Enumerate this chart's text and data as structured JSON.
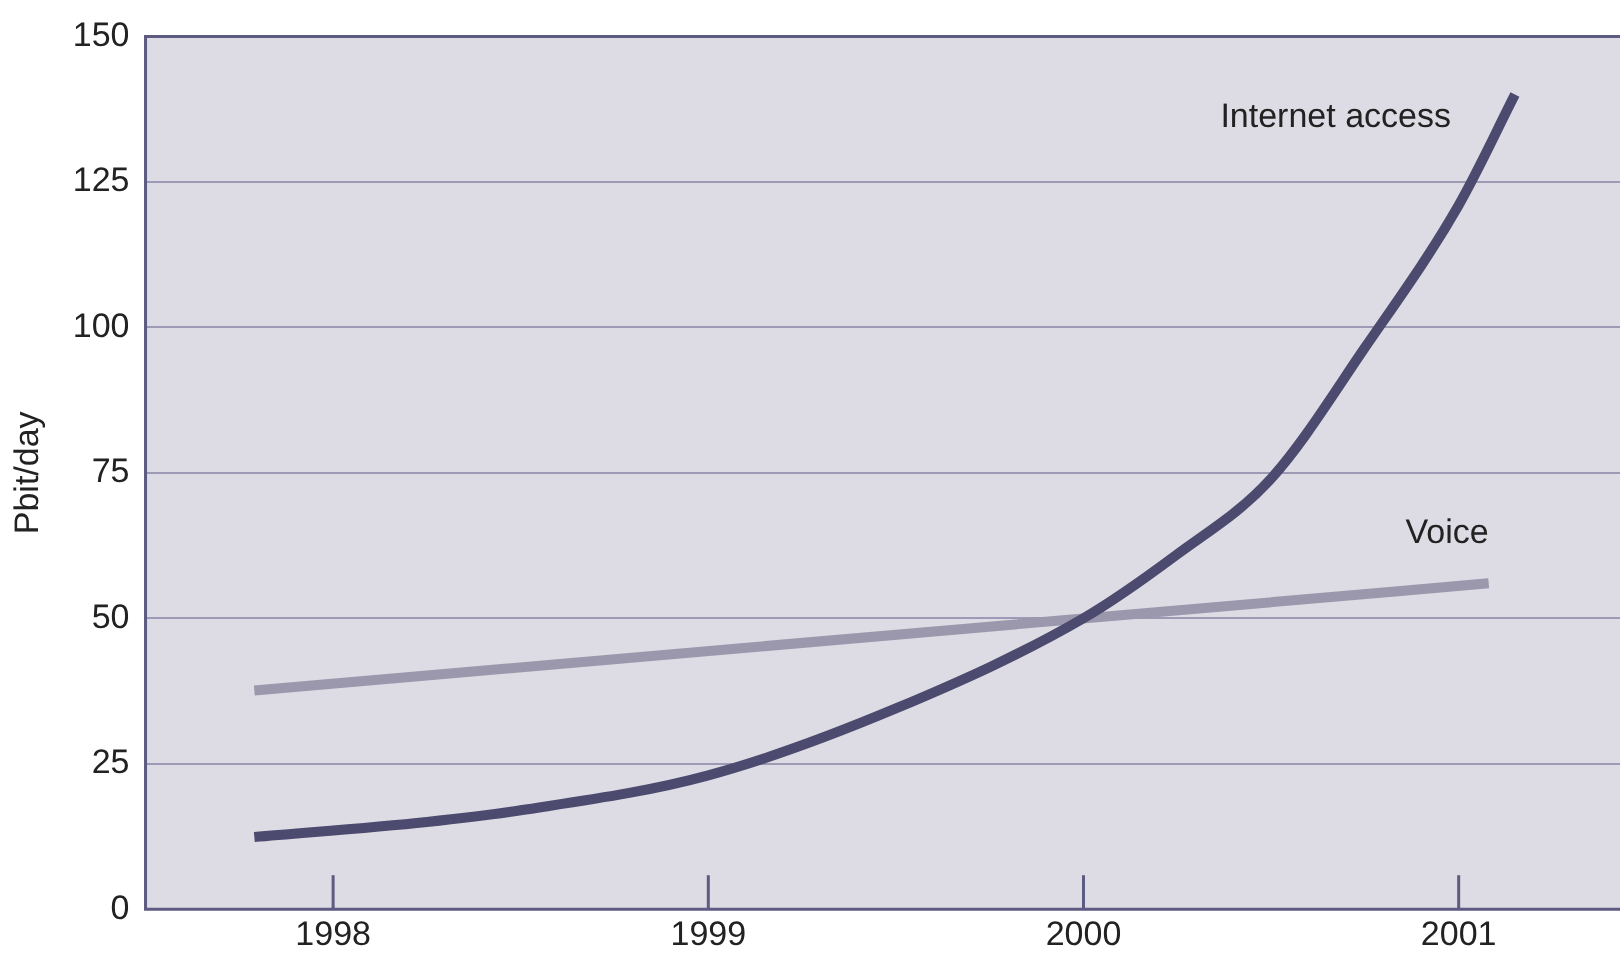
{
  "chart_data": {
    "type": "line",
    "ylabel": "Pbit/day",
    "xlim": [
      1997.5,
      2001.43
    ],
    "xticks": [
      1998,
      1999,
      2000,
      2001
    ],
    "ylim": [
      0,
      150
    ],
    "yticks": [
      0,
      25,
      50,
      75,
      100,
      125,
      150
    ],
    "grid": "y",
    "marker": "none",
    "line_style": "solid",
    "series": [
      {
        "name": "Internet access",
        "color": "#4c4a6e",
        "x": [
          1997.79,
          1998.25,
          1998.5,
          1999,
          1999.5,
          2000,
          2000.25,
          2000.5,
          2000.75,
          2001,
          2001.15
        ],
        "values": [
          12.4,
          15,
          17,
          23,
          34.5,
          50,
          61,
          74,
          96.5,
          121,
          140
        ]
      },
      {
        "name": "Voice",
        "color": "#9b98ad",
        "x": [
          1997.79,
          2001.08
        ],
        "values": [
          37.6,
          56
        ]
      }
    ]
  }
}
